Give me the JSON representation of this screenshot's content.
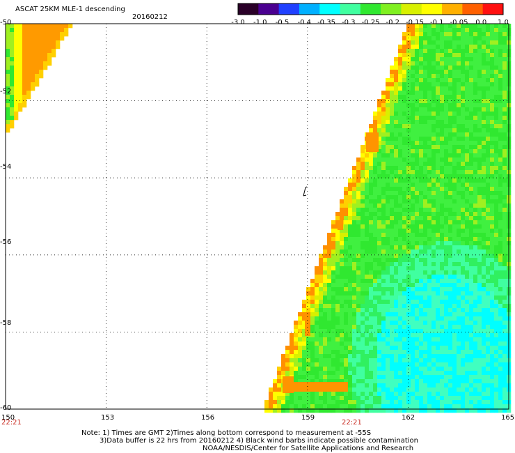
{
  "header": {
    "title": "ASCAT 25KM MLE-1 descending",
    "date": "20160212"
  },
  "colorbar": {
    "ticks": [
      "-3.0",
      "-1.0",
      "-0.5",
      "-0.4",
      "-0.35",
      "-0.3",
      "-0.25",
      "-0.2",
      "-0.15",
      "-0.1",
      "-0.05",
      "0.0",
      "1.0"
    ],
    "colors": [
      "#2a0028",
      "#4a0090",
      "#2040ff",
      "#00b0ff",
      "#00ffff",
      "#40ffa0",
      "#30e830",
      "#80f020",
      "#d8f000",
      "#ffff00",
      "#ffb000",
      "#ff6000",
      "#ff1010"
    ]
  },
  "map": {
    "lon_range": [
      150,
      165
    ],
    "lat_range": [
      -60,
      -50
    ],
    "lon_ticks": [
      "150",
      "153",
      "156",
      "159",
      "162",
      "165"
    ],
    "lat_ticks": [
      "-50",
      "-52",
      "-54",
      "-56",
      "-58",
      "-60"
    ],
    "time_labels": [
      "22:21",
      "22:21"
    ]
  },
  "notes": {
    "line1": "Note: 1) Times are GMT 2)Times along bottom correspond to measurement at -55S",
    "line2": "3)Data buffer is 22 hrs from 20160212 4) Black wind barbs indicate possible contamination",
    "line3": "NOAA/NESDIS/Center for Satellite Applications and Research"
  }
}
